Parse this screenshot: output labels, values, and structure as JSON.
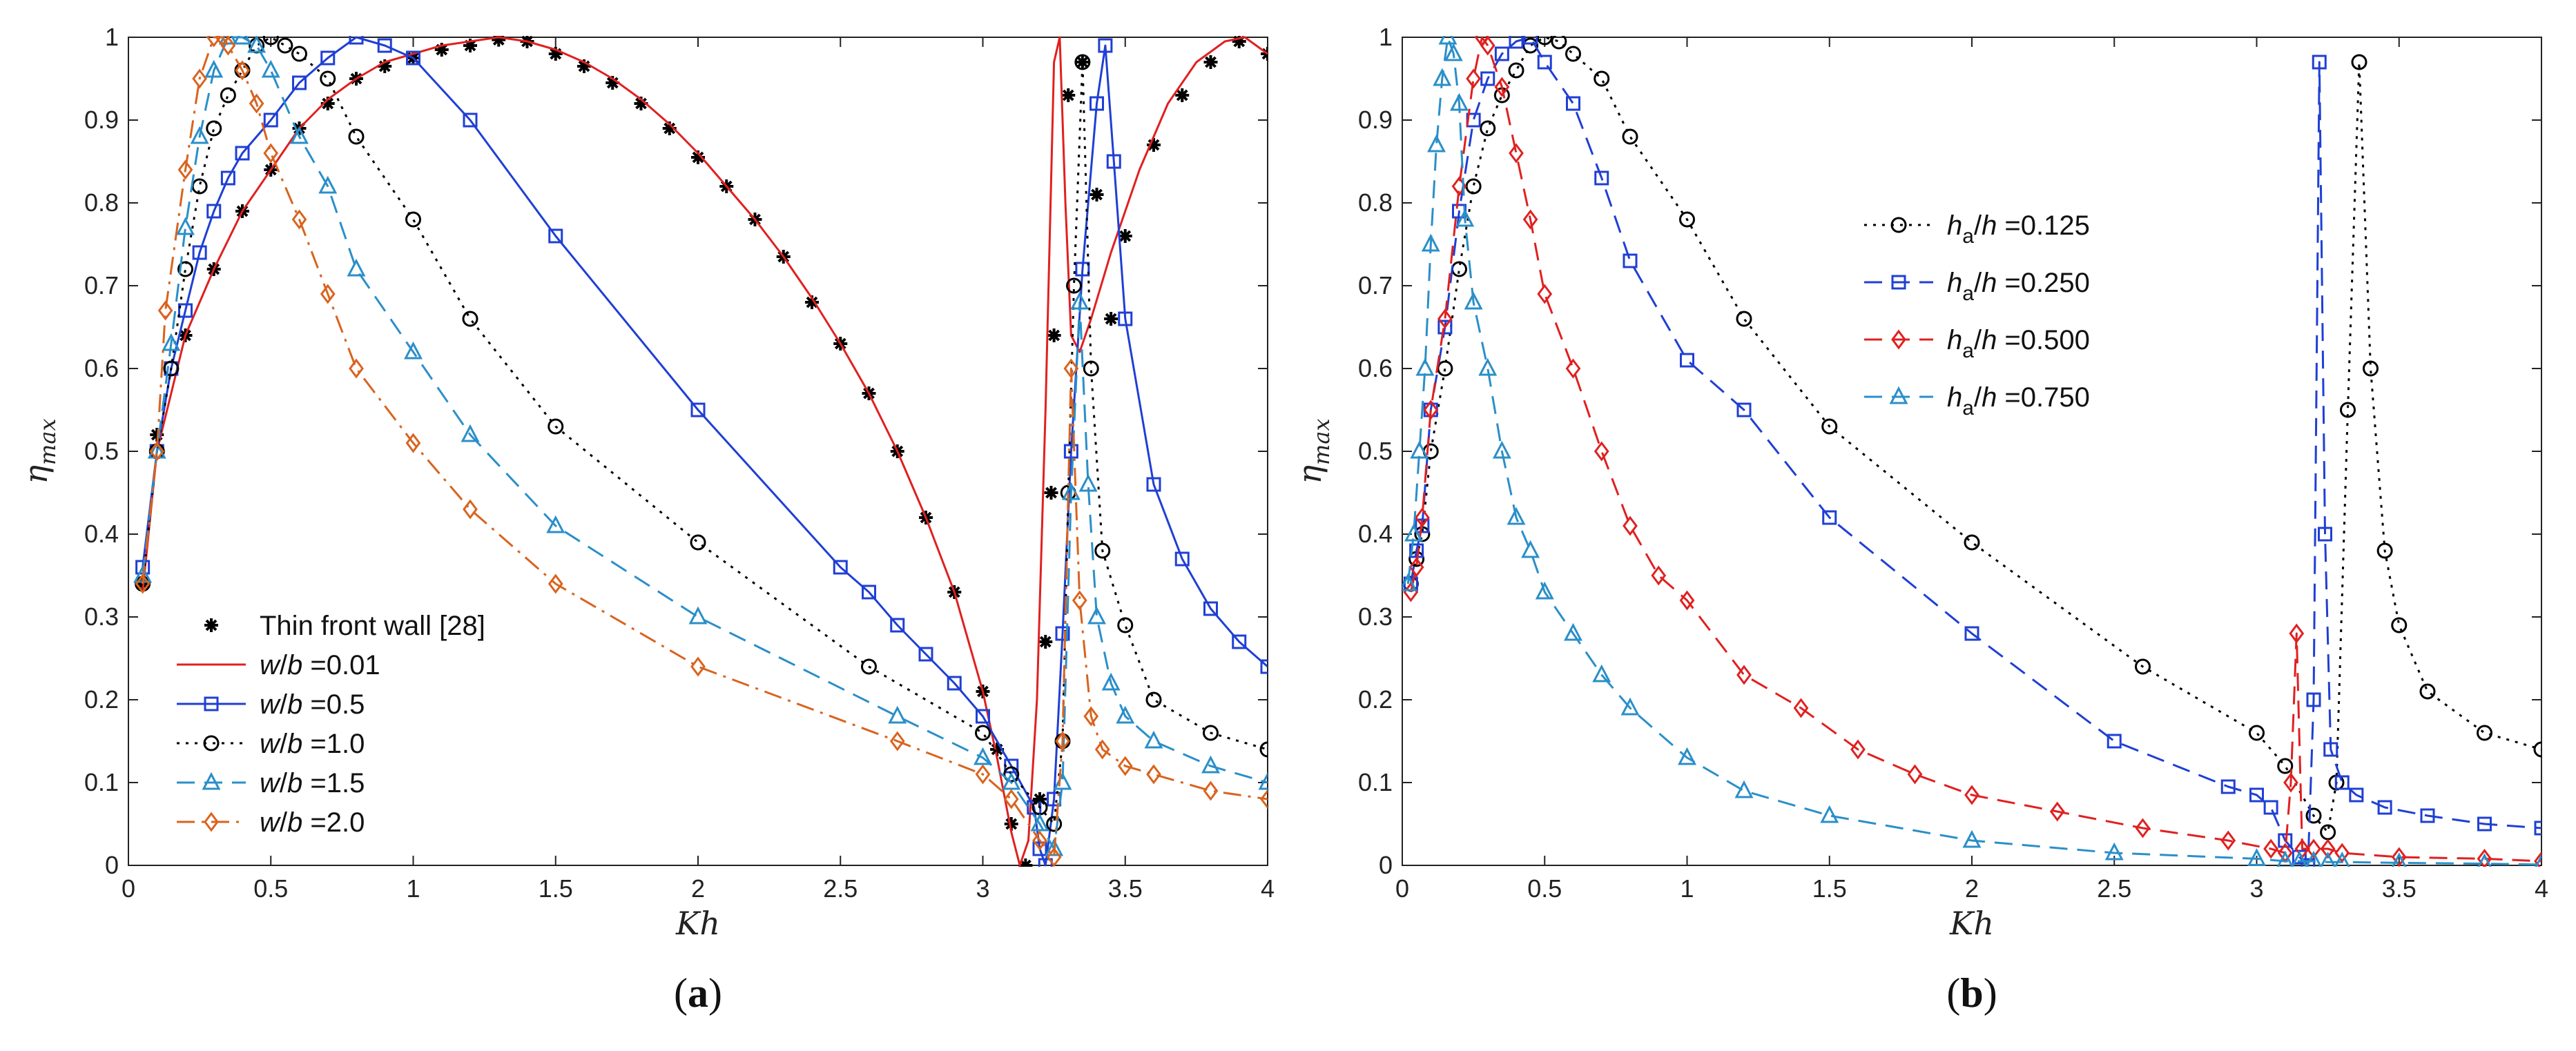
{
  "chart_data": [
    {
      "type": "line",
      "panel": "a",
      "label": "(a)",
      "xlabel": "Kh",
      "ylabel_main": "η",
      "ylabel_sub": "max",
      "xlim": [
        0,
        4
      ],
      "ylim": [
        0,
        1
      ],
      "xticks": [
        0,
        0.5,
        1,
        1.5,
        2,
        2.5,
        3,
        3.5,
        4
      ],
      "yticks": [
        0,
        0.1,
        0.2,
        0.3,
        0.4,
        0.5,
        0.6,
        0.7,
        0.8,
        0.9,
        1
      ],
      "legend_position": "bottom-left",
      "series": [
        {
          "name": "Thin front wall [28]",
          "color": "#000000",
          "marker": "asterisk",
          "line": "none",
          "x": [
            0.05,
            0.1,
            0.2,
            0.3,
            0.4,
            0.5,
            0.6,
            0.7,
            0.8,
            0.9,
            1.0,
            1.1,
            1.2,
            1.3,
            1.4,
            1.5,
            1.6,
            1.7,
            1.8,
            1.9,
            2.0,
            2.1,
            2.2,
            2.3,
            2.4,
            2.5,
            2.6,
            2.7,
            2.8,
            2.9,
            3.0,
            3.05,
            3.1,
            3.15,
            3.2,
            3.22,
            3.24,
            3.25,
            3.3,
            3.35,
            3.4,
            3.45,
            3.5,
            3.6,
            3.7,
            3.8,
            3.9,
            4.0
          ],
          "y": [
            0.34,
            0.52,
            0.64,
            0.72,
            0.79,
            0.84,
            0.89,
            0.92,
            0.95,
            0.965,
            0.975,
            0.985,
            0.99,
            0.997,
            0.995,
            0.98,
            0.965,
            0.945,
            0.92,
            0.89,
            0.855,
            0.82,
            0.78,
            0.735,
            0.68,
            0.63,
            0.57,
            0.5,
            0.42,
            0.33,
            0.21,
            0.14,
            0.05,
            0.0,
            0.08,
            0.27,
            0.45,
            0.64,
            0.93,
            0.97,
            0.81,
            0.66,
            0.76,
            0.87,
            0.93,
            0.97,
            0.995,
            0.98
          ]
        },
        {
          "name": "w/b =0.01",
          "color": "#e02020",
          "marker": "none",
          "line": "solid",
          "x": [
            0.05,
            0.1,
            0.2,
            0.3,
            0.4,
            0.5,
            0.6,
            0.7,
            0.8,
            0.9,
            1.0,
            1.1,
            1.2,
            1.3,
            1.4,
            1.5,
            1.6,
            1.7,
            1.8,
            1.9,
            2.0,
            2.1,
            2.2,
            2.3,
            2.4,
            2.5,
            2.6,
            2.7,
            2.8,
            2.9,
            3.0,
            3.05,
            3.1,
            3.13,
            3.16,
            3.19,
            3.22,
            3.25,
            3.27,
            3.29,
            3.31,
            3.34,
            3.38,
            3.45,
            3.55,
            3.65,
            3.75,
            3.85,
            3.92,
            4.0
          ],
          "y": [
            0.33,
            0.5,
            0.64,
            0.72,
            0.79,
            0.84,
            0.89,
            0.925,
            0.95,
            0.97,
            0.98,
            0.99,
            0.995,
            1.0,
            0.995,
            0.985,
            0.97,
            0.95,
            0.925,
            0.895,
            0.86,
            0.82,
            0.78,
            0.735,
            0.685,
            0.63,
            0.57,
            0.5,
            0.42,
            0.33,
            0.21,
            0.13,
            0.04,
            0.0,
            0.03,
            0.2,
            0.55,
            0.97,
            1.0,
            0.8,
            0.64,
            0.62,
            0.66,
            0.74,
            0.84,
            0.92,
            0.97,
            0.995,
            1.0,
            0.98
          ]
        },
        {
          "name": "w/b =0.5",
          "color": "#1f3fd4",
          "marker": "square",
          "line": "solid",
          "x": [
            0.05,
            0.1,
            0.15,
            0.2,
            0.25,
            0.3,
            0.35,
            0.4,
            0.5,
            0.6,
            0.7,
            0.8,
            0.9,
            1.0,
            1.2,
            1.5,
            2.0,
            2.5,
            2.6,
            2.7,
            2.8,
            2.9,
            3.0,
            3.1,
            3.18,
            3.2,
            3.22,
            3.25,
            3.28,
            3.31,
            3.35,
            3.4,
            3.43,
            3.46,
            3.5,
            3.6,
            3.7,
            3.8,
            3.9,
            4.0
          ],
          "y": [
            0.36,
            0.5,
            0.6,
            0.67,
            0.74,
            0.79,
            0.83,
            0.86,
            0.9,
            0.945,
            0.975,
            1.0,
            0.99,
            0.975,
            0.9,
            0.76,
            0.55,
            0.36,
            0.33,
            0.29,
            0.255,
            0.22,
            0.18,
            0.12,
            0.07,
            0.02,
            0.0,
            0.08,
            0.28,
            0.5,
            0.72,
            0.92,
            0.99,
            0.85,
            0.66,
            0.46,
            0.37,
            0.31,
            0.27,
            0.24
          ]
        },
        {
          "name": "w/b =1.0",
          "color": "#000000",
          "marker": "circle",
          "line": "dotted",
          "x": [
            0.05,
            0.1,
            0.15,
            0.2,
            0.25,
            0.3,
            0.35,
            0.4,
            0.45,
            0.5,
            0.55,
            0.6,
            0.7,
            0.8,
            1.0,
            1.2,
            1.5,
            2.0,
            2.6,
            3.0,
            3.1,
            3.2,
            3.25,
            3.28,
            3.3,
            3.32,
            3.35,
            3.38,
            3.42,
            3.5,
            3.6,
            3.8,
            4.0
          ],
          "y": [
            0.34,
            0.5,
            0.6,
            0.72,
            0.82,
            0.89,
            0.93,
            0.96,
            0.99,
            1.0,
            0.99,
            0.98,
            0.95,
            0.88,
            0.78,
            0.66,
            0.53,
            0.39,
            0.24,
            0.16,
            0.11,
            0.07,
            0.05,
            0.15,
            0.45,
            0.7,
            0.97,
            0.6,
            0.38,
            0.29,
            0.2,
            0.16,
            0.14
          ]
        },
        {
          "name": "w/b =1.5",
          "color": "#2a8fc9",
          "marker": "triangle",
          "line": "dashed",
          "x": [
            0.05,
            0.1,
            0.15,
            0.2,
            0.25,
            0.3,
            0.35,
            0.4,
            0.45,
            0.5,
            0.6,
            0.7,
            0.8,
            1.0,
            1.2,
            1.5,
            2.0,
            2.7,
            3.0,
            3.1,
            3.2,
            3.25,
            3.28,
            3.31,
            3.34,
            3.37,
            3.4,
            3.45,
            3.5,
            3.6,
            3.8,
            4.0
          ],
          "y": [
            0.35,
            0.5,
            0.63,
            0.77,
            0.88,
            0.96,
            1.0,
            1.0,
            0.99,
            0.96,
            0.88,
            0.82,
            0.72,
            0.62,
            0.52,
            0.41,
            0.3,
            0.18,
            0.13,
            0.1,
            0.05,
            0.02,
            0.1,
            0.45,
            0.68,
            0.46,
            0.3,
            0.22,
            0.18,
            0.15,
            0.12,
            0.1
          ]
        },
        {
          "name": "w/b =2.0",
          "color": "#d9631e",
          "marker": "diamond",
          "line": "dashdot",
          "x": [
            0.05,
            0.1,
            0.13,
            0.2,
            0.25,
            0.3,
            0.33,
            0.35,
            0.4,
            0.45,
            0.5,
            0.6,
            0.7,
            0.8,
            1.0,
            1.2,
            1.5,
            2.0,
            2.7,
            3.0,
            3.1,
            3.2,
            3.25,
            3.28,
            3.31,
            3.34,
            3.38,
            3.42,
            3.5,
            3.6,
            3.8,
            4.0
          ],
          "y": [
            0.34,
            0.5,
            0.67,
            0.84,
            0.95,
            1.0,
            1.0,
            0.99,
            0.96,
            0.92,
            0.86,
            0.78,
            0.69,
            0.6,
            0.51,
            0.43,
            0.34,
            0.24,
            0.15,
            0.11,
            0.08,
            0.03,
            0.01,
            0.15,
            0.6,
            0.32,
            0.18,
            0.14,
            0.12,
            0.11,
            0.09,
            0.08
          ]
        }
      ]
    },
    {
      "type": "line",
      "panel": "b",
      "label": "(b)",
      "xlabel": "Kh",
      "ylabel_main": "η",
      "ylabel_sub": "max",
      "xlim": [
        0,
        4
      ],
      "ylim": [
        0,
        1
      ],
      "xticks": [
        0,
        0.5,
        1,
        1.5,
        2,
        2.5,
        3,
        3.5,
        4
      ],
      "yticks": [
        0,
        0.1,
        0.2,
        0.3,
        0.4,
        0.5,
        0.6,
        0.7,
        0.8,
        0.9,
        1
      ],
      "legend_position": "center-right",
      "legend_entries": [
        {
          "main": "h",
          "sub": "a",
          "rest": "/h =0.125"
        },
        {
          "main": "h",
          "sub": "a",
          "rest": "/h =0.250"
        },
        {
          "main": "h",
          "sub": "a",
          "rest": "/h =0.500"
        },
        {
          "main": "h",
          "sub": "a",
          "rest": "/h =0.750"
        }
      ],
      "series": [
        {
          "name": "ha/h =0.125",
          "color": "#000000",
          "marker": "circle",
          "line": "dotted",
          "x": [
            0.03,
            0.05,
            0.07,
            0.1,
            0.15,
            0.2,
            0.25,
            0.3,
            0.35,
            0.4,
            0.45,
            0.5,
            0.55,
            0.6,
            0.7,
            0.8,
            1.0,
            1.2,
            1.5,
            2.0,
            2.6,
            3.0,
            3.1,
            3.2,
            3.25,
            3.28,
            3.32,
            3.36,
            3.4,
            3.45,
            3.5,
            3.6,
            3.8,
            4.0
          ],
          "y": [
            0.34,
            0.37,
            0.4,
            0.5,
            0.6,
            0.72,
            0.82,
            0.89,
            0.93,
            0.96,
            0.99,
            1.0,
            0.995,
            0.98,
            0.95,
            0.88,
            0.78,
            0.66,
            0.53,
            0.39,
            0.24,
            0.16,
            0.12,
            0.06,
            0.04,
            0.1,
            0.55,
            0.97,
            0.6,
            0.38,
            0.29,
            0.21,
            0.16,
            0.14
          ]
        },
        {
          "name": "ha/h =0.250",
          "color": "#1f3fd4",
          "marker": "square",
          "line": "dashed",
          "x": [
            0.03,
            0.05,
            0.07,
            0.1,
            0.15,
            0.2,
            0.25,
            0.3,
            0.35,
            0.4,
            0.45,
            0.5,
            0.6,
            0.7,
            0.8,
            1.0,
            1.2,
            1.5,
            2.0,
            2.5,
            2.9,
            3.0,
            3.05,
            3.1,
            3.15,
            3.18,
            3.2,
            3.22,
            3.24,
            3.26,
            3.3,
            3.35,
            3.45,
            3.6,
            3.8,
            4.0
          ],
          "y": [
            0.34,
            0.38,
            0.41,
            0.55,
            0.65,
            0.79,
            0.9,
            0.95,
            0.98,
            0.995,
            1.0,
            0.97,
            0.92,
            0.83,
            0.73,
            0.61,
            0.55,
            0.42,
            0.28,
            0.15,
            0.095,
            0.085,
            0.07,
            0.03,
            0.01,
            0.0,
            0.2,
            0.97,
            0.4,
            0.14,
            0.1,
            0.085,
            0.07,
            0.06,
            0.05,
            0.045
          ]
        },
        {
          "name": "ha/h =0.500",
          "color": "#e02020",
          "marker": "diamond",
          "line": "dashed",
          "x": [
            0.03,
            0.05,
            0.07,
            0.1,
            0.15,
            0.2,
            0.25,
            0.28,
            0.3,
            0.35,
            0.4,
            0.45,
            0.5,
            0.6,
            0.7,
            0.8,
            0.9,
            1.0,
            1.2,
            1.4,
            1.6,
            1.8,
            2.0,
            2.3,
            2.6,
            2.9,
            3.05,
            3.1,
            3.12,
            3.14,
            3.16,
            3.2,
            3.25,
            3.3,
            3.5,
            3.8,
            4.0
          ],
          "y": [
            0.33,
            0.36,
            0.42,
            0.55,
            0.66,
            0.82,
            0.95,
            1.0,
            0.99,
            0.94,
            0.86,
            0.78,
            0.69,
            0.6,
            0.5,
            0.41,
            0.35,
            0.32,
            0.23,
            0.19,
            0.14,
            0.11,
            0.085,
            0.065,
            0.045,
            0.03,
            0.02,
            0.015,
            0.1,
            0.28,
            0.02,
            0.02,
            0.02,
            0.015,
            0.01,
            0.008,
            0.005
          ]
        },
        {
          "name": "ha/h =0.750",
          "color": "#2a8fc9",
          "marker": "triangle",
          "line": "dashed",
          "x": [
            0.02,
            0.04,
            0.06,
            0.08,
            0.1,
            0.12,
            0.14,
            0.16,
            0.18,
            0.2,
            0.22,
            0.25,
            0.3,
            0.35,
            0.4,
            0.45,
            0.5,
            0.6,
            0.7,
            0.8,
            1.0,
            1.2,
            1.5,
            2.0,
            2.5,
            3.0,
            3.1,
            3.15,
            3.2,
            3.25,
            3.3,
            3.5,
            3.8,
            4.0
          ],
          "y": [
            0.34,
            0.4,
            0.5,
            0.6,
            0.75,
            0.87,
            0.95,
            1.0,
            0.98,
            0.92,
            0.78,
            0.68,
            0.6,
            0.5,
            0.42,
            0.38,
            0.33,
            0.28,
            0.23,
            0.19,
            0.13,
            0.09,
            0.06,
            0.03,
            0.015,
            0.008,
            0.005,
            0.005,
            0.005,
            0.004,
            0.004,
            0.003,
            0.002,
            0.001
          ]
        }
      ]
    }
  ]
}
